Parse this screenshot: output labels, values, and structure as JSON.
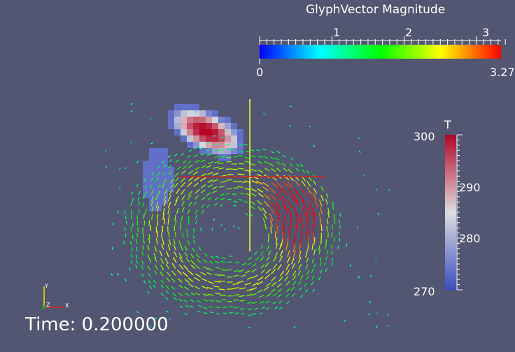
{
  "scene": {
    "background": "#525670",
    "glyph_colorbar": {
      "title": "GlyphVector Magnitude",
      "min_label": "0",
      "max_label": "3.27",
      "ticks": [
        "1",
        "2",
        "3"
      ],
      "colormap": [
        "#0000ff",
        "#00ffff",
        "#00ff00",
        "#ffff00",
        "#ff0000"
      ]
    },
    "temperature_colorbar": {
      "title": "T",
      "labels": [
        "300",
        "290",
        "280",
        "270"
      ],
      "colormap": [
        "#3b4cc0",
        "#dddddd",
        "#b40426"
      ]
    },
    "orientation_axes": {
      "x": "X",
      "y": "Y",
      "z": "Z"
    },
    "time_text": "Time: 0.200000"
  }
}
